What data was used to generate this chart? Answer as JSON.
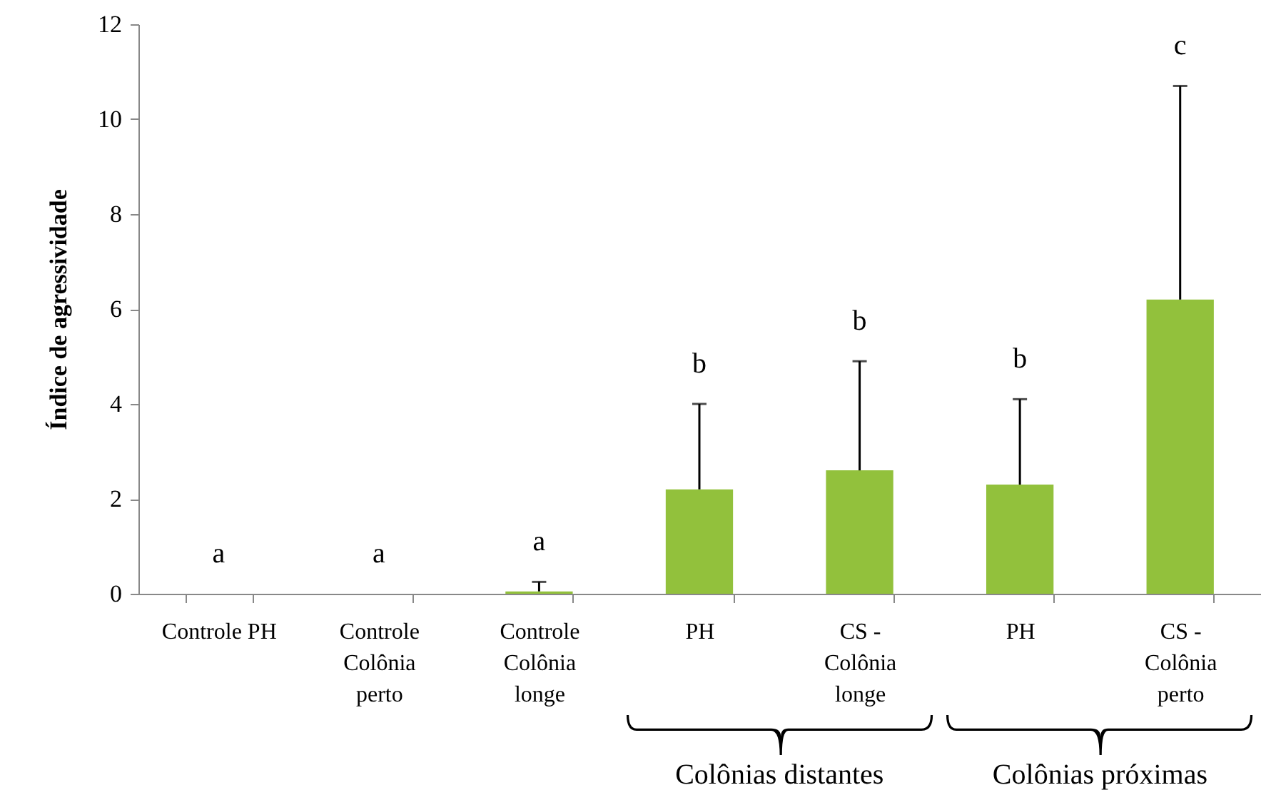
{
  "chart_data": {
    "type": "bar",
    "ylabel": "Índice de agressividade",
    "categories": [
      "Controle PH",
      "Controle Colônia perto",
      "Controle Colônia longe",
      "PH",
      "CS - Colônia longe",
      "PH",
      "CS - Colônia perto"
    ],
    "values": [
      0,
      0,
      0.05,
      2.2,
      2.6,
      2.3,
      6.2
    ],
    "errors": [
      null,
      null,
      0.2,
      1.8,
      2.3,
      1.8,
      4.5
    ],
    "color": "#92c13c",
    "ylim": [
      0,
      12
    ],
    "yticks": [
      0,
      2,
      4,
      6,
      8,
      10,
      12
    ],
    "grid": false,
    "annotations": [
      "a",
      "a",
      "a",
      "b",
      "b",
      "b",
      "c",
      "Colônias distantes",
      "Colônias próximas"
    ]
  }
}
